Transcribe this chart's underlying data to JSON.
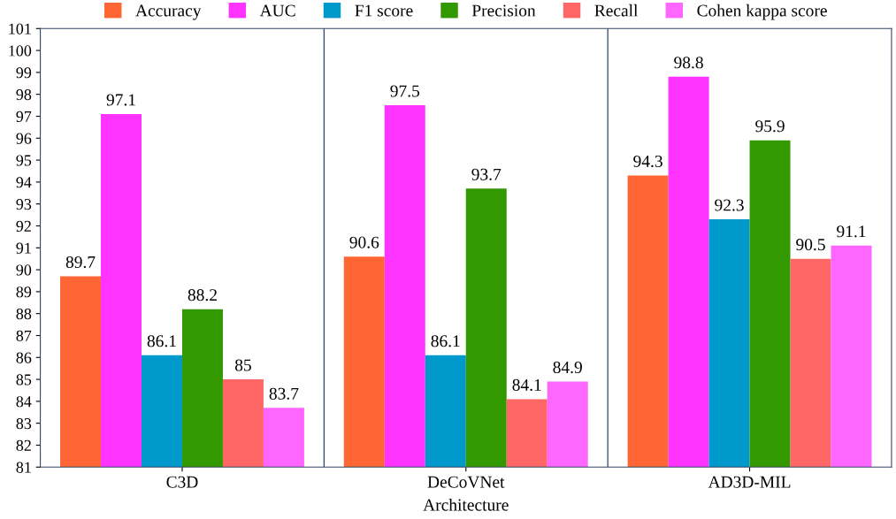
{
  "chart_data": {
    "type": "bar",
    "xlabel": "Architecture",
    "categories": [
      "C3D",
      "DeCoVNet",
      "AD3D-MIL"
    ],
    "series": [
      {
        "name": "Accuracy",
        "color": "#ff6633",
        "values": [
          89.7,
          90.6,
          94.3
        ]
      },
      {
        "name": "AUC",
        "color": "#ff33ff",
        "values": [
          97.1,
          97.5,
          98.8
        ]
      },
      {
        "name": "F1 score",
        "color": "#0099cc",
        "values": [
          86.1,
          86.1,
          92.3
        ]
      },
      {
        "name": "Precision",
        "color": "#339900",
        "values": [
          88.2,
          93.7,
          95.9
        ]
      },
      {
        "name": "Recall",
        "color": "#ff6666",
        "values": [
          85,
          84.1,
          90.5
        ]
      },
      {
        "name": "Cohen kappa score",
        "color": "#ff66ff",
        "values": [
          83.7,
          84.9,
          91.1
        ]
      }
    ],
    "ylim": [
      81,
      101
    ],
    "yticks": [
      81,
      82,
      83,
      84,
      85,
      86,
      87,
      88,
      89,
      90,
      91,
      92,
      93,
      94,
      95,
      96,
      97,
      98,
      99,
      100,
      101
    ],
    "grid": "x",
    "legend": "top",
    "data_labels": true
  }
}
